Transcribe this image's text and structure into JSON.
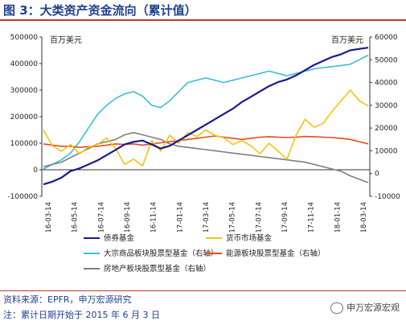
{
  "header": {
    "title": "图 3：大类资产资金流向（累计值）"
  },
  "units": {
    "left": "百万美元",
    "right": "百万美元"
  },
  "footer": {
    "source": "资料来源：EPFR，申万宏源研究",
    "note": "注：累计日期开始于 2015 年 6 月 3 日",
    "watermark": "申万宏源宏观"
  },
  "colors": {
    "bond": "#1a1a8c",
    "money": "#f2c40f",
    "commodity": "#3bbfd6",
    "energy": "#e64a19",
    "realestate": "#808080"
  },
  "chart_data": {
    "type": "line",
    "x_labels": [
      "2016-03-14",
      "2016-05-14",
      "2016-07-14",
      "2016-09-14",
      "2016-11-14",
      "2017-01-14",
      "2017-03-14",
      "2017-05-14",
      "2017-07-14",
      "2017-09-14",
      "2017-11-14",
      "2018-01-14",
      "2018-03-14"
    ],
    "y_left": {
      "min": -100000,
      "max": 500000,
      "ticks": [
        -100000,
        0,
        100000,
        200000,
        300000,
        400000,
        500000
      ]
    },
    "y_right": {
      "min": -10000,
      "max": 60000,
      "ticks": [
        -10000,
        0,
        10000,
        20000,
        30000,
        40000,
        50000,
        60000
      ]
    },
    "series": [
      {
        "name": "债券基金",
        "axis": "left",
        "color_key": "bond",
        "values": [
          -55000,
          -45000,
          -30000,
          -5000,
          5000,
          20000,
          35000,
          55000,
          75000,
          95000,
          105000,
          110000,
          95000,
          80000,
          90000,
          110000,
          130000,
          150000,
          170000,
          190000,
          210000,
          230000,
          255000,
          275000,
          295000,
          315000,
          330000,
          340000,
          355000,
          375000,
          395000,
          410000,
          425000,
          435000,
          450000,
          455000,
          460000
        ]
      },
      {
        "name": "货币市场基金",
        "axis": "left",
        "color_key": "money",
        "values": [
          150000,
          90000,
          70000,
          95000,
          60000,
          85000,
          95000,
          120000,
          80000,
          20000,
          40000,
          15000,
          110000,
          70000,
          130000,
          100000,
          140000,
          125000,
          150000,
          130000,
          120000,
          95000,
          110000,
          90000,
          60000,
          100000,
          70000,
          40000,
          130000,
          190000,
          160000,
          175000,
          220000,
          260000,
          300000,
          260000,
          240000
        ]
      },
      {
        "name": "大宗商品板块股票型基金（右轴）",
        "axis": "right",
        "color_key": "commodity",
        "values": [
          2000,
          4000,
          6000,
          9000,
          14000,
          20000,
          26000,
          30000,
          33000,
          35000,
          36000,
          34000,
          30000,
          29000,
          32000,
          36000,
          40000,
          41000,
          42000,
          41000,
          40000,
          41000,
          42000,
          43000,
          44000,
          45000,
          44000,
          43000,
          44000,
          45000,
          46000,
          46500,
          47000,
          47500,
          48000,
          50000,
          52000
        ]
      },
      {
        "name": "能源板块股票型基金（右轴）",
        "axis": "right",
        "color_key": "energy",
        "values": [
          13000,
          12500,
          12000,
          12000,
          11500,
          11800,
          12000,
          12500,
          13000,
          12800,
          13000,
          12500,
          13000,
          13500,
          14000,
          14500,
          15000,
          15500,
          16000,
          16500,
          16000,
          15500,
          15000,
          15500,
          16000,
          16200,
          16000,
          15800,
          16000,
          16300,
          16200,
          16000,
          15800,
          15500,
          15000,
          14000,
          13000
        ]
      },
      {
        "name": "房地产板块股票型基金（右轴）",
        "axis": "right",
        "color_key": "realestate",
        "values": [
          3000,
          4000,
          5000,
          7000,
          9000,
          11000,
          13000,
          14000,
          15000,
          17000,
          18000,
          17000,
          16000,
          15000,
          13000,
          12000,
          11500,
          11000,
          10500,
          10000,
          9500,
          9000,
          8500,
          8000,
          7500,
          7000,
          6500,
          6000,
          5500,
          5000,
          4000,
          3000,
          2000,
          1000,
          -1000,
          -2500,
          -4000
        ]
      }
    ]
  }
}
